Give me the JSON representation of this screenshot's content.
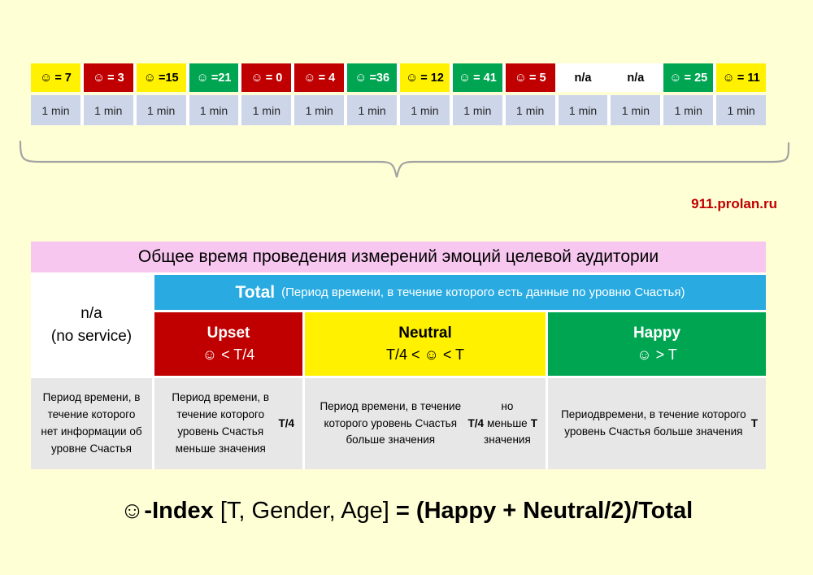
{
  "page": {
    "background": "#FFFFD6"
  },
  "branding": {
    "site": "911.prolan.ru",
    "color": "#C00000"
  },
  "strip": {
    "colors": {
      "yellow": "#FFF100",
      "red": "#C00000",
      "green": "#00A551",
      "na": "#FFFFFF"
    },
    "cells": [
      {
        "type": "yellow",
        "icon": "☺",
        "label": "= 7"
      },
      {
        "type": "red",
        "icon": "☺",
        "label": "= 3"
      },
      {
        "type": "yellow",
        "icon": "☺",
        "label": "=15"
      },
      {
        "type": "green",
        "icon": "☺",
        "label": "=21"
      },
      {
        "type": "red",
        "icon": "☺",
        "label": "= 0"
      },
      {
        "type": "red",
        "icon": "☺",
        "label": "= 4"
      },
      {
        "type": "green",
        "icon": "☺",
        "label": "=36"
      },
      {
        "type": "yellow",
        "icon": "☺",
        "label": "= 12"
      },
      {
        "type": "green",
        "icon": "☺",
        "label": "= 41"
      },
      {
        "type": "red",
        "icon": "☺",
        "label": "= 5"
      },
      {
        "type": "na",
        "icon": "",
        "label": "n/a"
      },
      {
        "type": "na",
        "icon": "",
        "label": "n/a"
      },
      {
        "type": "green",
        "icon": "☺",
        "label": "= 25"
      },
      {
        "type": "yellow",
        "icon": "☺",
        "label": "= 11"
      }
    ],
    "durations": [
      "1 min",
      "1 min",
      "1 min",
      "1 min",
      "1 min",
      "1 min",
      "1 min",
      "1 min",
      "1 min",
      "1 min",
      "1 min",
      "1 min",
      "1 min",
      "1 min"
    ]
  },
  "table": {
    "title": "Общее время проведения измерений эмоций целевой аудитории",
    "na_line1": "n/a",
    "na_line2": "(no service)",
    "total_title": "Total",
    "total_subtitle": "(Период времени, в течение которого есть данные по уровню Счастья)",
    "categories": {
      "upset": {
        "name": "Upset",
        "condition": "☺ < T/4"
      },
      "neutral": {
        "name": "Neutral",
        "condition": "T/4 < ☺ < T"
      },
      "happy": {
        "name": "Happy",
        "condition": "☺ > T"
      }
    },
    "descriptions": {
      "na": [
        {
          "t": "Период времени, в течение которого нет информации об уровне Счастья",
          "b": false
        }
      ],
      "upset": [
        {
          "t": "Период времени, в течение которого уровень Счастья меньше значения ",
          "b": false
        },
        {
          "t": "Т/4",
          "b": true
        }
      ],
      "neutral": [
        {
          "t": "Период времени, в течение которого уровень Счастья больше значения ",
          "b": false
        },
        {
          "t": "Т/4",
          "b": true
        },
        {
          "t": " но меньше значения ",
          "b": false
        },
        {
          "t": "Т",
          "b": true
        }
      ],
      "happy": [
        {
          "t": "Периодвремени, в течение которого уровень Счастья больше значения ",
          "b": false
        },
        {
          "t": "Т",
          "b": true
        }
      ]
    },
    "colors": {
      "title_pink": "#F8C7F0",
      "total_blue": "#29ABE2",
      "upset_red": "#C00000",
      "neutral_yellow": "#FFF100",
      "happy_green": "#00A551",
      "desc_gray": "#E7E7E7",
      "duration_lavender": "#CDD5E9"
    }
  },
  "formula": {
    "icon": "☺",
    "name": "-Index",
    "args": "[T, Gender, Age]",
    "equals": "= (Happy + Neutral/2)/Total"
  }
}
